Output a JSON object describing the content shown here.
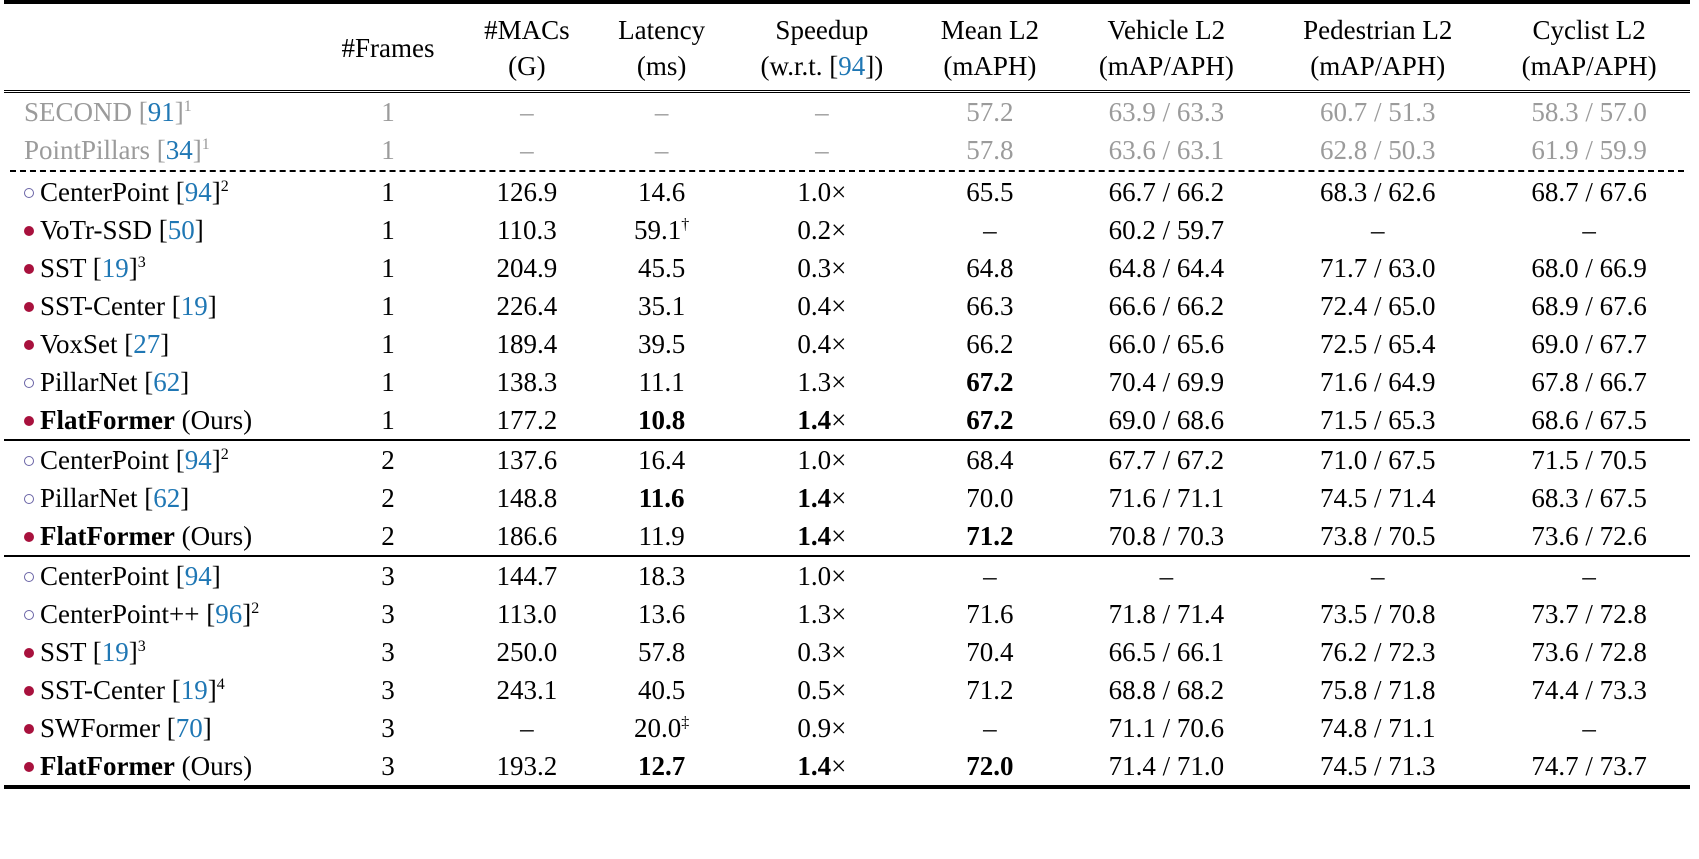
{
  "table": {
    "headers": [
      {
        "line1": "",
        "line2": ""
      },
      {
        "line1": "#Frames",
        "line2": ""
      },
      {
        "line1": "#MACs",
        "line2": "(G)"
      },
      {
        "line1": "Latency",
        "line2": "(ms)"
      },
      {
        "line1": "Speedup",
        "line2_pre": "(w.r.t. [",
        "line2_ref": "94",
        "line2_post": "])"
      },
      {
        "line1": "Mean L2",
        "line2": "(mAPH)"
      },
      {
        "line1": "Vehicle L2",
        "line2": "(mAP/APH)"
      },
      {
        "line1": "Pedestrian L2",
        "line2": "(mAP/APH)"
      },
      {
        "line1": "Cyclist L2",
        "line2": "(mAP/APH)"
      }
    ],
    "baseline_rows": [
      {
        "name": "SECOND",
        "ref": "91",
        "sup": "1",
        "frames": "1",
        "macs": "–",
        "latency": "–",
        "speedup": "–",
        "mean": "57.2",
        "vehicle": "63.9 / 63.3",
        "pedestrian": "60.7 / 51.3",
        "cyclist": "58.3 / 57.0"
      },
      {
        "name": "PointPillars",
        "ref": "34",
        "sup": "1",
        "frames": "1",
        "macs": "–",
        "latency": "–",
        "speedup": "–",
        "mean": "57.8",
        "vehicle": "63.6 / 63.1",
        "pedestrian": "62.8 / 50.3",
        "cyclist": "61.9 / 59.9"
      }
    ],
    "groups": [
      {
        "rows": [
          {
            "marker": "open",
            "name": "CenterPoint",
            "ref": "94",
            "sup": "2",
            "frames": "1",
            "macs": "126.9",
            "latency": "14.6",
            "lat_sup": "",
            "speedup": "1.0",
            "mean": "65.5",
            "vehicle": "66.7 / 66.2",
            "pedestrian": "68.3 / 62.6",
            "cyclist": "68.7 / 67.6"
          },
          {
            "marker": "filled",
            "name": "VoTr-SSD",
            "ref": "50",
            "sup": "",
            "frames": "1",
            "macs": "110.3",
            "latency": "59.1",
            "lat_sup": "†",
            "speedup": "0.2",
            "mean": "–",
            "vehicle": "60.2 / 59.7",
            "pedestrian": "–",
            "cyclist": "–"
          },
          {
            "marker": "filled",
            "name": "SST",
            "ref": "19",
            "sup": "3",
            "frames": "1",
            "macs": "204.9",
            "latency": "45.5",
            "lat_sup": "",
            "speedup": "0.3",
            "mean": "64.8",
            "vehicle": "64.8 / 64.4",
            "pedestrian": "71.7 / 63.0",
            "cyclist": "68.0 / 66.9"
          },
          {
            "marker": "filled",
            "name": "SST-Center",
            "ref": "19",
            "sup": "",
            "frames": "1",
            "macs": "226.4",
            "latency": "35.1",
            "lat_sup": "",
            "speedup": "0.4",
            "mean": "66.3",
            "vehicle": "66.6 / 66.2",
            "pedestrian": "72.4 / 65.0",
            "cyclist": "68.9 / 67.6"
          },
          {
            "marker": "filled",
            "name": "VoxSet",
            "ref": "27",
            "sup": "",
            "frames": "1",
            "macs": "189.4",
            "latency": "39.5",
            "lat_sup": "",
            "speedup": "0.4",
            "mean": "66.2",
            "vehicle": "66.0 / 65.6",
            "pedestrian": "72.5 / 65.4",
            "cyclist": "69.0 / 67.7"
          },
          {
            "marker": "open",
            "name": "PillarNet",
            "ref": "62",
            "sup": "",
            "frames": "1",
            "macs": "138.3",
            "latency": "11.1",
            "lat_sup": "",
            "speedup": "1.3",
            "mean": "67.2",
            "mean_bold": true,
            "vehicle": "70.4 / 69.9",
            "pedestrian": "71.6 / 64.9",
            "cyclist": "67.8 / 66.7"
          },
          {
            "marker": "filled",
            "name": "FlatFormer",
            "ours": "(Ours)",
            "bold_name": true,
            "frames": "1",
            "macs": "177.2",
            "latency": "10.8",
            "lat_bold": true,
            "speedup": "1.4",
            "speed_bold": true,
            "mean": "67.2",
            "mean_bold": true,
            "vehicle": "69.0 / 68.6",
            "pedestrian": "71.5 / 65.3",
            "cyclist": "68.6 / 67.5"
          }
        ]
      },
      {
        "rows": [
          {
            "marker": "open",
            "name": "CenterPoint",
            "ref": "94",
            "sup": "2",
            "frames": "2",
            "macs": "137.6",
            "latency": "16.4",
            "speedup": "1.0",
            "mean": "68.4",
            "vehicle": "67.7 / 67.2",
            "pedestrian": "71.0 / 67.5",
            "cyclist": "71.5 / 70.5"
          },
          {
            "marker": "open",
            "name": "PillarNet",
            "ref": "62",
            "sup": "",
            "frames": "2",
            "macs": "148.8",
            "latency": "11.6",
            "lat_bold": true,
            "speedup": "1.4",
            "speed_bold": true,
            "mean": "70.0",
            "vehicle": "71.6 / 71.1",
            "pedestrian": "74.5 / 71.4",
            "cyclist": "68.3 / 67.5"
          },
          {
            "marker": "filled",
            "name": "FlatFormer",
            "ours": "(Ours)",
            "bold_name": true,
            "frames": "2",
            "macs": "186.6",
            "latency": "11.9",
            "speedup": "1.4",
            "speed_bold": true,
            "mean": "71.2",
            "mean_bold": true,
            "vehicle": "70.8 / 70.3",
            "pedestrian": "73.8 / 70.5",
            "cyclist": "73.6 / 72.6"
          }
        ]
      },
      {
        "rows": [
          {
            "marker": "open",
            "name": "CenterPoint",
            "ref": "94",
            "sup": "",
            "frames": "3",
            "macs": "144.7",
            "latency": "18.3",
            "speedup": "1.0",
            "mean": "–",
            "vehicle": "–",
            "pedestrian": "–",
            "cyclist": "–"
          },
          {
            "marker": "open",
            "name": "CenterPoint++",
            "ref": "96",
            "sup": "2",
            "frames": "3",
            "macs": "113.0",
            "latency": "13.6",
            "speedup": "1.3",
            "mean": "71.6",
            "vehicle": "71.8 / 71.4",
            "pedestrian": "73.5 / 70.8",
            "cyclist": "73.7 / 72.8"
          },
          {
            "marker": "filled",
            "name": "SST",
            "ref": "19",
            "sup": "3",
            "frames": "3",
            "macs": "250.0",
            "latency": "57.8",
            "speedup": "0.3",
            "mean": "70.4",
            "vehicle": "66.5 / 66.1",
            "pedestrian": "76.2 / 72.3",
            "cyclist": "73.6 / 72.8"
          },
          {
            "marker": "filled",
            "name": "SST-Center",
            "ref": "19",
            "sup": "4",
            "frames": "3",
            "macs": "243.1",
            "latency": "40.5",
            "speedup": "0.5",
            "mean": "71.2",
            "vehicle": "68.8 / 68.2",
            "pedestrian": "75.8 / 71.8",
            "cyclist": "74.4 / 73.3"
          },
          {
            "marker": "filled",
            "name": "SWFormer",
            "ref": "70",
            "sup": "",
            "frames": "3",
            "macs": "–",
            "latency": "20.0",
            "lat_sup": "‡",
            "speedup": "0.9",
            "mean": "–",
            "vehicle": "71.1 / 70.6",
            "pedestrian": "74.8 / 71.1",
            "cyclist": "–"
          },
          {
            "marker": "filled",
            "name": "FlatFormer",
            "ours": "(Ours)",
            "bold_name": true,
            "frames": "3",
            "macs": "193.2",
            "latency": "12.7",
            "lat_bold": true,
            "speedup": "1.4",
            "speed_bold": true,
            "mean": "72.0",
            "mean_bold": true,
            "vehicle": "71.4 / 71.0",
            "pedestrian": "74.5 / 71.3",
            "cyclist": "74.7 / 73.7"
          }
        ]
      }
    ],
    "speedup_suffix": "×",
    "colors": {
      "muted_text": "#9b9b9b",
      "ref_link": "#1f77b4",
      "filled_marker": "#a8113d",
      "open_marker": "#6a64a6"
    }
  }
}
